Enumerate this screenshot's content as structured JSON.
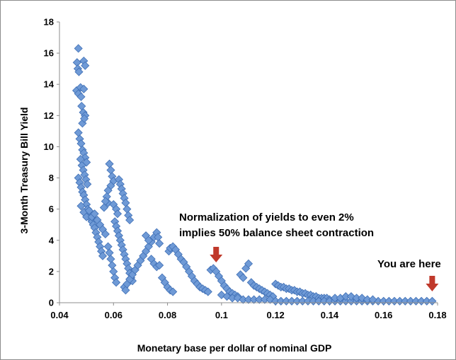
{
  "chart_data": {
    "type": "scatter",
    "title": "",
    "xlabel": "Monetary base per dollar of nominal GDP",
    "ylabel": "3-Month Treasury Bill Yield",
    "xlim": [
      0.04,
      0.18
    ],
    "ylim": [
      0,
      18
    ],
    "x_ticks": [
      "0.04",
      "0.06",
      "0.08",
      "0.1",
      "0.12",
      "0.14",
      "0.16",
      "0.18"
    ],
    "y_ticks": [
      "0",
      "2",
      "4",
      "6",
      "8",
      "10",
      "12",
      "14",
      "16",
      "18"
    ],
    "grid": false,
    "legend": "none",
    "marker": "diamond",
    "marker_color": "#6f9ad6",
    "annotations": [
      {
        "lines": [
          "Normalization of yields to even 2%",
          "implies 50% balance sheet contraction"
        ],
        "arrow_x": 0.098,
        "arrow_color": "#c0392b"
      },
      {
        "lines": [
          "You are here"
        ],
        "arrow_x": 0.178,
        "arrow_color": "#c0392b"
      }
    ],
    "points": [
      [
        0.047,
        16.3
      ],
      [
        0.049,
        15.5
      ],
      [
        0.0465,
        15.4
      ],
      [
        0.0468,
        15.0
      ],
      [
        0.0472,
        14.8
      ],
      [
        0.0495,
        15.2
      ],
      [
        0.0463,
        13.6
      ],
      [
        0.047,
        13.4
      ],
      [
        0.0478,
        13.8
      ],
      [
        0.049,
        13.7
      ],
      [
        0.048,
        13.2
      ],
      [
        0.0482,
        12.6
      ],
      [
        0.0488,
        12.2
      ],
      [
        0.0495,
        12.0
      ],
      [
        0.0485,
        11.5
      ],
      [
        0.0492,
        11.8
      ],
      [
        0.047,
        10.9
      ],
      [
        0.0475,
        10.5
      ],
      [
        0.048,
        10.2
      ],
      [
        0.0485,
        9.8
      ],
      [
        0.049,
        9.6
      ],
      [
        0.0495,
        9.3
      ],
      [
        0.05,
        9.0
      ],
      [
        0.0478,
        9.2
      ],
      [
        0.0483,
        8.8
      ],
      [
        0.0488,
        8.5
      ],
      [
        0.0493,
        8.2
      ],
      [
        0.0498,
        7.9
      ],
      [
        0.0503,
        7.6
      ],
      [
        0.047,
        8.0
      ],
      [
        0.0475,
        7.7
      ],
      [
        0.048,
        7.4
      ],
      [
        0.0485,
        7.1
      ],
      [
        0.049,
        6.9
      ],
      [
        0.0495,
        6.6
      ],
      [
        0.05,
        6.3
      ],
      [
        0.0505,
        6.0
      ],
      [
        0.051,
        5.7
      ],
      [
        0.0515,
        5.4
      ],
      [
        0.052,
        5.2
      ],
      [
        0.0525,
        5.0
      ],
      [
        0.053,
        4.8
      ],
      [
        0.0535,
        4.5
      ],
      [
        0.054,
        4.2
      ],
      [
        0.0545,
        3.9
      ],
      [
        0.055,
        3.6
      ],
      [
        0.0555,
        3.3
      ],
      [
        0.056,
        3.0
      ],
      [
        0.048,
        6.2
      ],
      [
        0.049,
        5.8
      ],
      [
        0.05,
        5.5
      ],
      [
        0.051,
        5.9
      ],
      [
        0.052,
        5.5
      ],
      [
        0.053,
        5.7
      ],
      [
        0.054,
        5.3
      ],
      [
        0.055,
        5.0
      ],
      [
        0.056,
        4.7
      ],
      [
        0.057,
        4.4
      ],
      [
        0.058,
        6.4
      ],
      [
        0.0585,
        8.9
      ],
      [
        0.059,
        8.5
      ],
      [
        0.0595,
        8.1
      ],
      [
        0.06,
        7.8
      ],
      [
        0.059,
        7.5
      ],
      [
        0.058,
        7.2
      ],
      [
        0.0575,
        6.8
      ],
      [
        0.057,
        6.5
      ],
      [
        0.0565,
        6.1
      ],
      [
        0.06,
        6.3
      ],
      [
        0.061,
        6.0
      ],
      [
        0.0615,
        5.7
      ],
      [
        0.062,
        7.9
      ],
      [
        0.0625,
        7.6
      ],
      [
        0.063,
        7.3
      ],
      [
        0.0635,
        7.0
      ],
      [
        0.064,
        6.7
      ],
      [
        0.0645,
        6.4
      ],
      [
        0.065,
        6.0
      ],
      [
        0.0655,
        5.6
      ],
      [
        0.066,
        5.3
      ],
      [
        0.0605,
        5.2
      ],
      [
        0.061,
        4.9
      ],
      [
        0.0615,
        4.6
      ],
      [
        0.062,
        4.3
      ],
      [
        0.0625,
        4.0
      ],
      [
        0.063,
        3.7
      ],
      [
        0.0635,
        3.4
      ],
      [
        0.064,
        3.1
      ],
      [
        0.0645,
        2.8
      ],
      [
        0.065,
        2.5
      ],
      [
        0.0655,
        2.2
      ],
      [
        0.066,
        1.9
      ],
      [
        0.0665,
        1.6
      ],
      [
        0.067,
        1.4
      ],
      [
        0.058,
        3.6
      ],
      [
        0.0585,
        3.2
      ],
      [
        0.059,
        2.8
      ],
      [
        0.0595,
        2.4
      ],
      [
        0.06,
        2.0
      ],
      [
        0.0605,
        1.6
      ],
      [
        0.061,
        1.3
      ],
      [
        0.064,
        1.0
      ],
      [
        0.0645,
        0.8
      ],
      [
        0.065,
        1.2
      ],
      [
        0.066,
        1.5
      ],
      [
        0.067,
        1.8
      ],
      [
        0.068,
        2.1
      ],
      [
        0.069,
        2.4
      ],
      [
        0.07,
        2.7
      ],
      [
        0.071,
        3.0
      ],
      [
        0.072,
        3.3
      ],
      [
        0.073,
        3.6
      ],
      [
        0.074,
        3.9
      ],
      [
        0.075,
        4.2
      ],
      [
        0.076,
        4.5
      ],
      [
        0.0765,
        4.2
      ],
      [
        0.077,
        3.8
      ],
      [
        0.072,
        4.3
      ],
      [
        0.073,
        4.0
      ],
      [
        0.074,
        2.8
      ],
      [
        0.075,
        2.5
      ],
      [
        0.076,
        2.3
      ],
      [
        0.077,
        2.4
      ],
      [
        0.078,
        1.6
      ],
      [
        0.079,
        1.3
      ],
      [
        0.08,
        1.0
      ],
      [
        0.081,
        0.8
      ],
      [
        0.082,
        0.7
      ],
      [
        0.0805,
        3.3
      ],
      [
        0.081,
        3.5
      ],
      [
        0.082,
        3.6
      ],
      [
        0.083,
        3.4
      ],
      [
        0.084,
        3.1
      ],
      [
        0.085,
        2.8
      ],
      [
        0.086,
        2.6
      ],
      [
        0.087,
        2.3
      ],
      [
        0.088,
        2.0
      ],
      [
        0.089,
        1.7
      ],
      [
        0.09,
        1.4
      ],
      [
        0.091,
        1.2
      ],
      [
        0.092,
        1.0
      ],
      [
        0.093,
        0.9
      ],
      [
        0.094,
        0.8
      ],
      [
        0.095,
        0.7
      ],
      [
        0.096,
        2.1
      ],
      [
        0.097,
        2.2
      ],
      [
        0.098,
        2.0
      ],
      [
        0.099,
        1.7
      ],
      [
        0.1,
        1.4
      ],
      [
        0.101,
        1.1
      ],
      [
        0.102,
        0.9
      ],
      [
        0.103,
        0.7
      ],
      [
        0.104,
        0.6
      ],
      [
        0.105,
        0.5
      ],
      [
        0.106,
        0.4
      ],
      [
        0.107,
        1.8
      ],
      [
        0.108,
        1.6
      ],
      [
        0.109,
        2.2
      ],
      [
        0.11,
        2.5
      ],
      [
        0.111,
        1.3
      ],
      [
        0.112,
        1.1
      ],
      [
        0.113,
        1.0
      ],
      [
        0.114,
        0.9
      ],
      [
        0.115,
        0.8
      ],
      [
        0.116,
        0.7
      ],
      [
        0.117,
        0.6
      ],
      [
        0.118,
        0.5
      ],
      [
        0.119,
        0.4
      ],
      [
        0.12,
        1.2
      ],
      [
        0.121,
        1.1
      ],
      [
        0.122,
        1.0
      ],
      [
        0.123,
        1.0
      ],
      [
        0.124,
        0.9
      ],
      [
        0.125,
        0.9
      ],
      [
        0.126,
        0.8
      ],
      [
        0.127,
        0.8
      ],
      [
        0.128,
        0.7
      ],
      [
        0.129,
        0.7
      ],
      [
        0.13,
        0.6
      ],
      [
        0.131,
        0.6
      ],
      [
        0.132,
        0.5
      ],
      [
        0.133,
        0.5
      ],
      [
        0.134,
        0.4
      ],
      [
        0.135,
        0.4
      ],
      [
        0.136,
        0.3
      ],
      [
        0.137,
        0.3
      ],
      [
        0.138,
        0.3
      ],
      [
        0.139,
        0.3
      ],
      [
        0.14,
        0.2
      ],
      [
        0.1,
        0.5
      ],
      [
        0.102,
        0.4
      ],
      [
        0.104,
        0.3
      ],
      [
        0.106,
        0.3
      ],
      [
        0.108,
        0.2
      ],
      [
        0.11,
        0.2
      ],
      [
        0.112,
        0.2
      ],
      [
        0.114,
        0.2
      ],
      [
        0.116,
        0.2
      ],
      [
        0.118,
        0.2
      ],
      [
        0.12,
        0.1
      ],
      [
        0.122,
        0.1
      ],
      [
        0.124,
        0.1
      ],
      [
        0.126,
        0.1
      ],
      [
        0.128,
        0.1
      ],
      [
        0.13,
        0.1
      ],
      [
        0.132,
        0.1
      ],
      [
        0.134,
        0.1
      ],
      [
        0.136,
        0.1
      ],
      [
        0.138,
        0.1
      ],
      [
        0.14,
        0.1
      ],
      [
        0.142,
        0.1
      ],
      [
        0.144,
        0.1
      ],
      [
        0.146,
        0.1
      ],
      [
        0.148,
        0.1
      ],
      [
        0.15,
        0.1
      ],
      [
        0.152,
        0.1
      ],
      [
        0.154,
        0.1
      ],
      [
        0.156,
        0.1
      ],
      [
        0.158,
        0.1
      ],
      [
        0.16,
        0.1
      ],
      [
        0.162,
        0.1
      ],
      [
        0.164,
        0.1
      ],
      [
        0.166,
        0.1
      ],
      [
        0.168,
        0.1
      ],
      [
        0.17,
        0.1
      ],
      [
        0.172,
        0.1
      ],
      [
        0.174,
        0.1
      ],
      [
        0.176,
        0.1
      ],
      [
        0.178,
        0.1
      ],
      [
        0.142,
        0.3
      ],
      [
        0.144,
        0.3
      ],
      [
        0.146,
        0.4
      ],
      [
        0.148,
        0.4
      ],
      [
        0.15,
        0.3
      ],
      [
        0.152,
        0.3
      ],
      [
        0.154,
        0.2
      ],
      [
        0.156,
        0.2
      ]
    ]
  }
}
